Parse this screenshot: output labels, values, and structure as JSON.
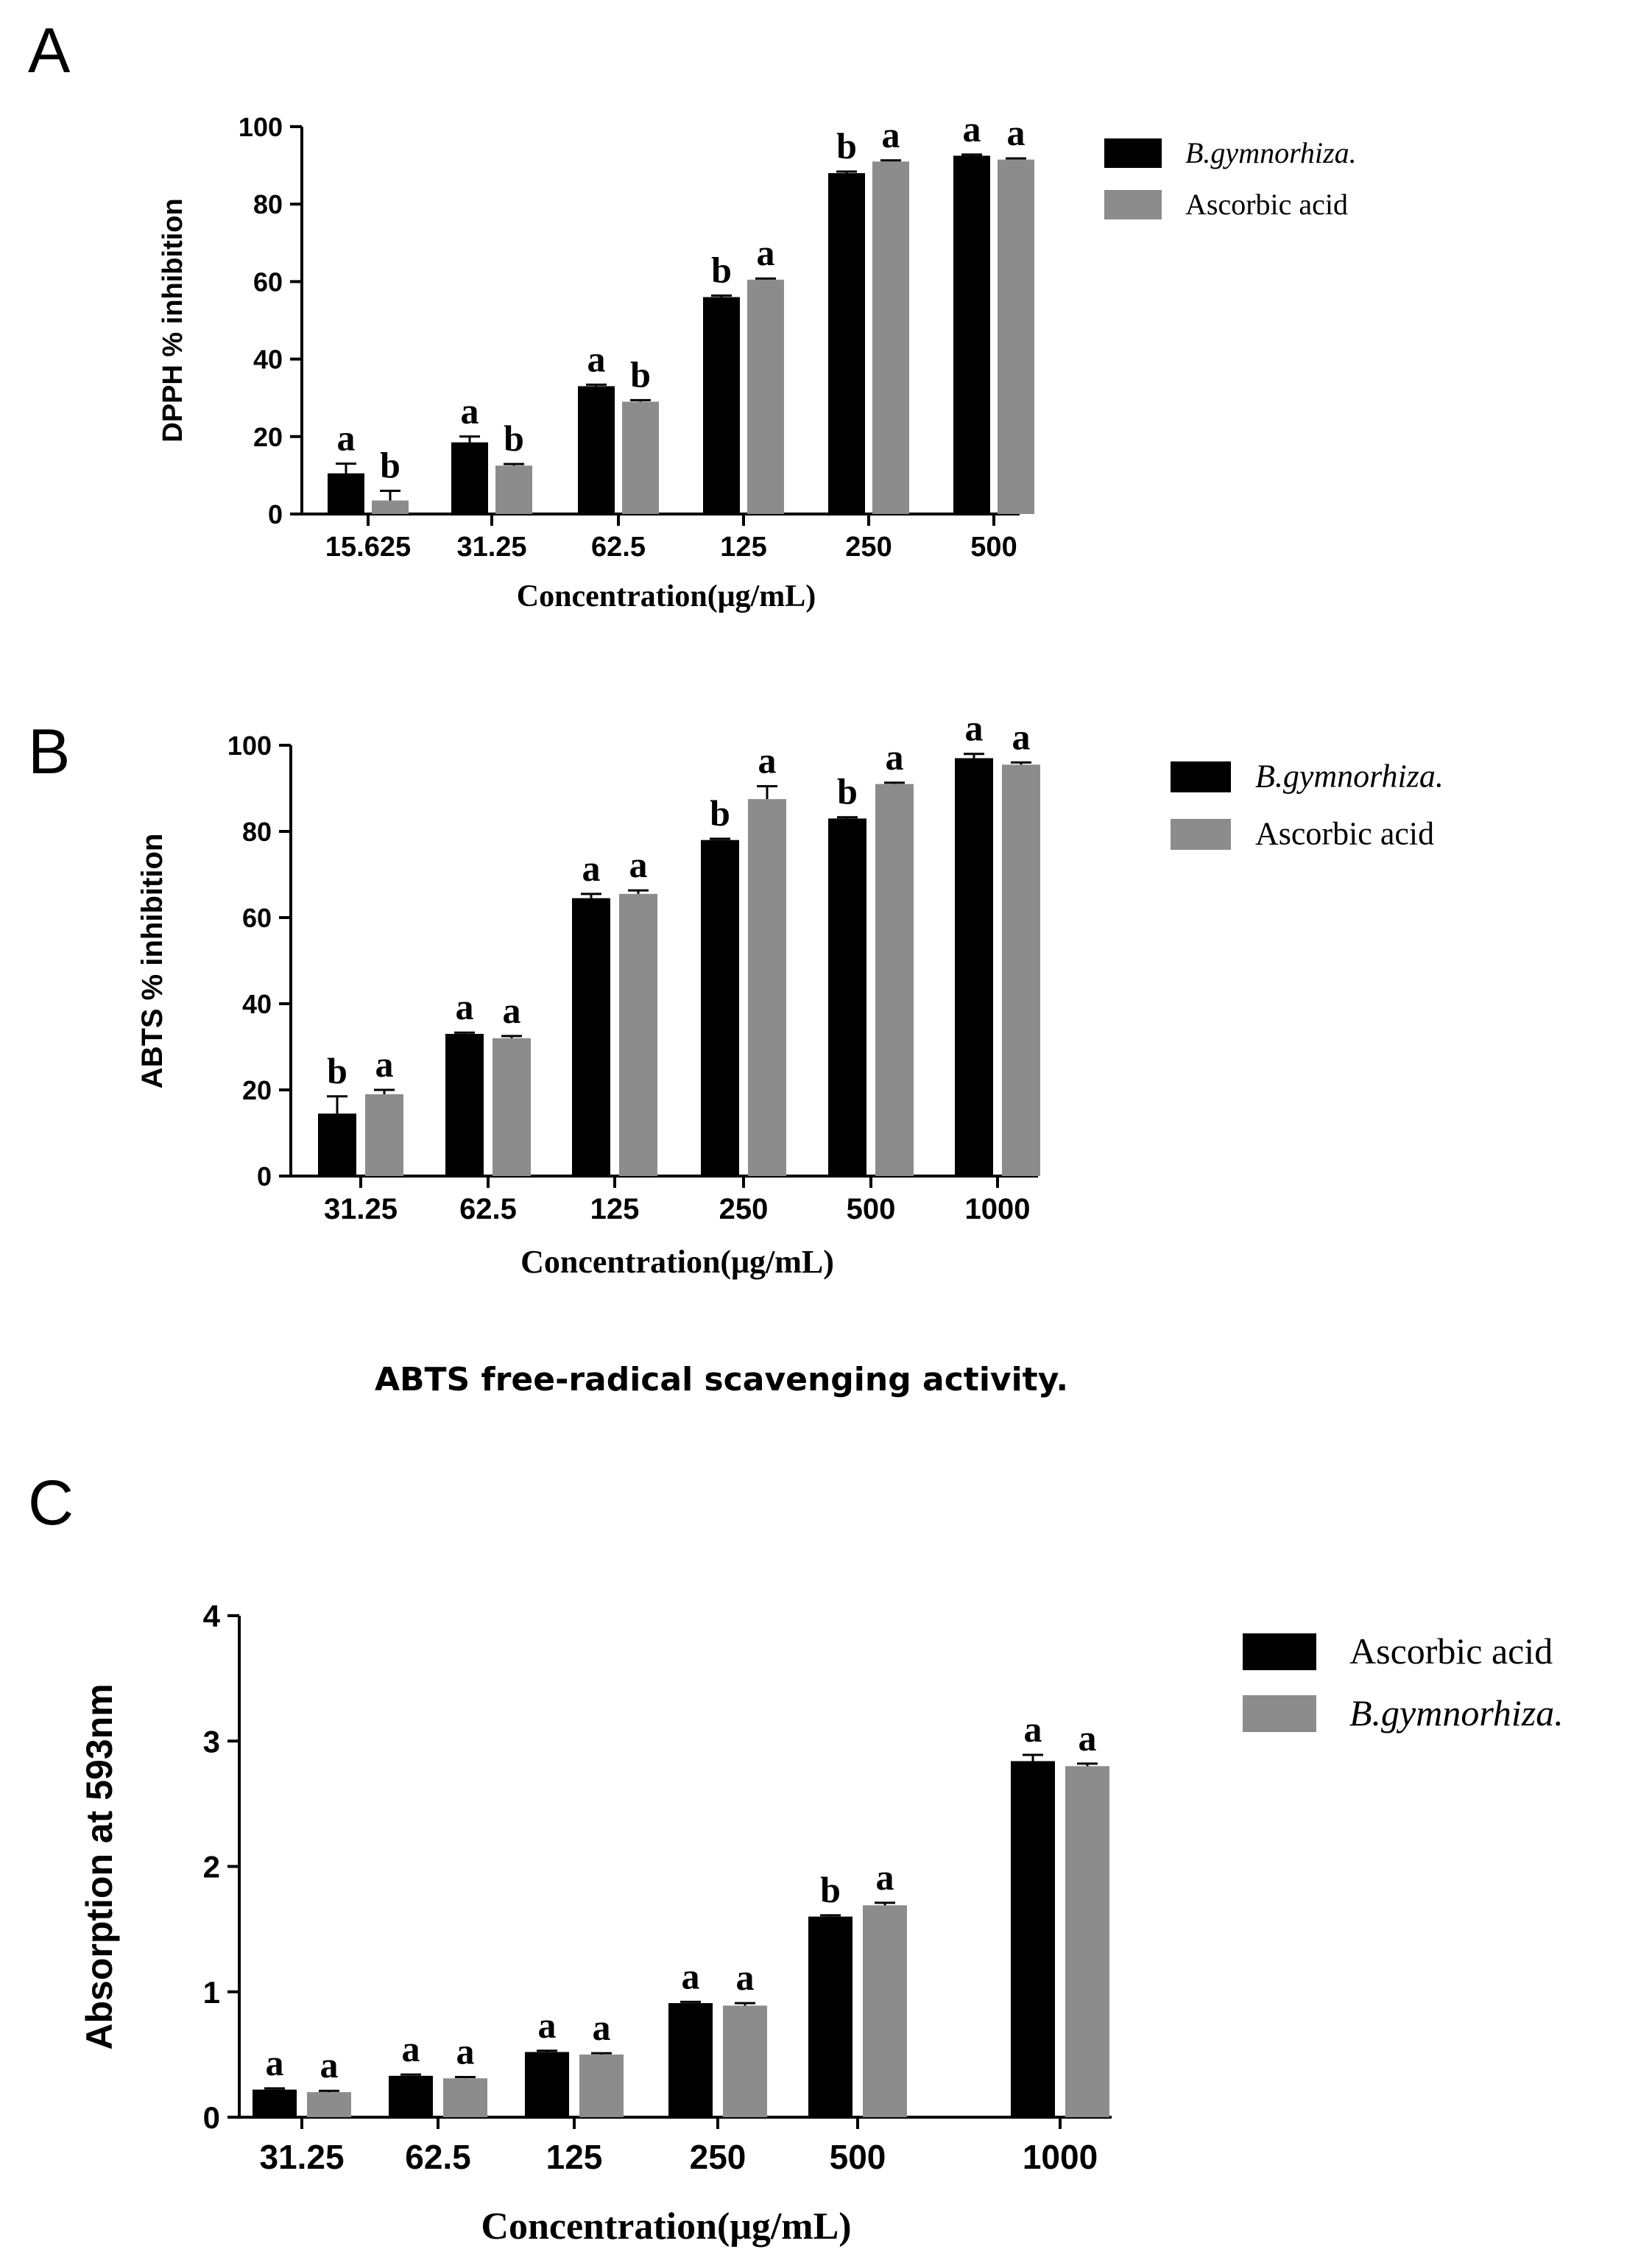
{
  "figure": {
    "caption_b": "ABTS free-radical scavenging activity."
  },
  "colors": {
    "dark": "#000000",
    "gray": "#8c8c8c"
  },
  "chart_data": [
    {
      "panel": "A",
      "type": "bar",
      "ylabel": "DPPH % inhibition",
      "xlabel": "Concentration(μg/mL)",
      "ylim": [
        0,
        100
      ],
      "yticks": [
        0,
        20,
        40,
        60,
        80,
        100
      ],
      "categories": [
        "15.625",
        "31.25",
        "62.5",
        "125",
        "250",
        "500"
      ],
      "legend_placement": "top-right",
      "series": [
        {
          "name": "B.gymnorhiza.",
          "italic": true,
          "color": "#000000",
          "values": [
            10.5,
            18.5,
            33,
            56,
            88,
            92.5
          ],
          "errors": [
            2.5,
            1.5,
            0.4,
            0.4,
            0.4,
            0.3
          ],
          "sig": [
            "a",
            "a",
            "a",
            "b",
            "b",
            "a"
          ]
        },
        {
          "name": "Ascorbic acid",
          "italic": false,
          "color": "#8c8c8c",
          "values": [
            3.5,
            12.5,
            29,
            60.5,
            91,
            91.5
          ],
          "errors": [
            2.5,
            0.4,
            0.4,
            0.3,
            0.3,
            0.3
          ],
          "sig": [
            "b",
            "b",
            "b",
            "a",
            "a",
            "a"
          ]
        }
      ]
    },
    {
      "panel": "B",
      "type": "bar",
      "ylabel": "ABTS % inhibition",
      "xlabel": "Concentration(μg/mL)",
      "ylim": [
        0,
        100
      ],
      "yticks": [
        0,
        20,
        40,
        60,
        80,
        100
      ],
      "categories": [
        "31.25",
        "62.5",
        "125",
        "250",
        "500",
        "1000"
      ],
      "legend_placement": "top-right",
      "series": [
        {
          "name": "B.gymnorhiza.",
          "italic": true,
          "color": "#000000",
          "values": [
            14.5,
            33,
            64.5,
            78,
            83,
            97
          ],
          "errors": [
            4,
            0.3,
            1,
            0.3,
            0.3,
            1
          ],
          "sig": [
            "b",
            "a",
            "a",
            "b",
            "b",
            "a"
          ]
        },
        {
          "name": "Ascorbic acid",
          "italic": false,
          "color": "#8c8c8c",
          "values": [
            19,
            32,
            65.5,
            87.5,
            91,
            95.5
          ],
          "errors": [
            1,
            0.5,
            0.8,
            3,
            0.3,
            0.5
          ],
          "sig": [
            "a",
            "a",
            "a",
            "a",
            "a",
            "a"
          ]
        }
      ]
    },
    {
      "panel": "C",
      "type": "bar",
      "ylabel": "Absorption  at 593nm",
      "xlabel": "Concentration(μg/mL)",
      "ylim": [
        0,
        4
      ],
      "yticks": [
        0,
        1,
        2,
        3,
        4
      ],
      "categories": [
        "31.25",
        "62.5",
        "125",
        "250",
        "500",
        "1000"
      ],
      "legend_placement": "top-right",
      "series": [
        {
          "name": "Ascorbic acid",
          "italic": false,
          "color": "#000000",
          "values": [
            0.22,
            0.33,
            0.52,
            0.91,
            1.6,
            2.84
          ],
          "errors": [
            0.01,
            0.01,
            0.01,
            0.01,
            0.01,
            0.05
          ],
          "sig": [
            "a",
            "a",
            "a",
            "a",
            "b",
            "a"
          ]
        },
        {
          "name": "B.gymnorhiza.",
          "italic": true,
          "color": "#8c8c8c",
          "values": [
            0.2,
            0.31,
            0.5,
            0.89,
            1.69,
            2.8
          ],
          "errors": [
            0.01,
            0.01,
            0.01,
            0.02,
            0.02,
            0.02
          ],
          "sig": [
            "a",
            "a",
            "a",
            "a",
            "a",
            "a"
          ]
        }
      ]
    }
  ]
}
